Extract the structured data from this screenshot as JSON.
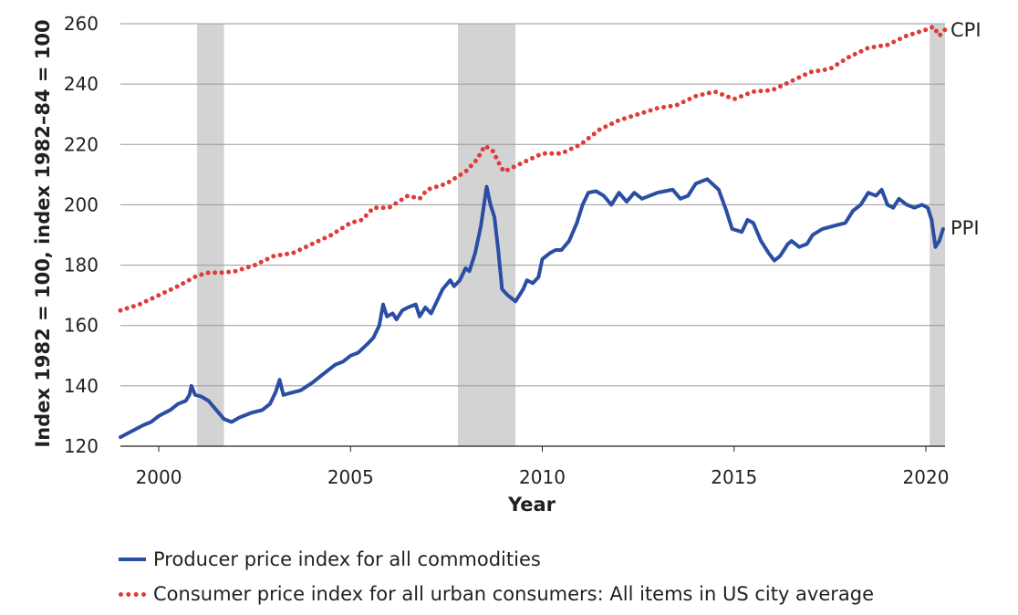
{
  "chart_data": {
    "type": "line",
    "title": "",
    "xlabel": "Year",
    "ylabel": "Index 1982 = 100, index 1982–84 = 100",
    "xlim": [
      1999.0,
      2020.5
    ],
    "ylim": [
      120,
      260
    ],
    "xticks": [
      "2000",
      "2005",
      "2010",
      "2015",
      "2020"
    ],
    "yticks": [
      "120",
      "140",
      "160",
      "180",
      "200",
      "220",
      "240",
      "260"
    ],
    "grid": "horizontal",
    "recessions": [
      [
        2001.0,
        2001.7
      ],
      [
        2007.8,
        2009.3
      ],
      [
        2020.1,
        2020.5
      ]
    ],
    "series": [
      {
        "name": "Producer price index for all commodities",
        "end_label": "PPI",
        "style": "solid",
        "color": "#2a4ea3",
        "points": [
          [
            1999.0,
            123
          ],
          [
            1999.3,
            125
          ],
          [
            1999.6,
            127
          ],
          [
            1999.8,
            128
          ],
          [
            2000.0,
            130
          ],
          [
            2000.3,
            132
          ],
          [
            2000.5,
            134
          ],
          [
            2000.7,
            135
          ],
          [
            2000.8,
            137
          ],
          [
            2000.85,
            140
          ],
          [
            2000.95,
            137
          ],
          [
            2001.1,
            136.5
          ],
          [
            2001.3,
            135
          ],
          [
            2001.5,
            132
          ],
          [
            2001.7,
            129
          ],
          [
            2001.9,
            128
          ],
          [
            2002.1,
            129.5
          ],
          [
            2002.4,
            131
          ],
          [
            2002.7,
            132
          ],
          [
            2002.9,
            134
          ],
          [
            2003.05,
            138
          ],
          [
            2003.15,
            142
          ],
          [
            2003.25,
            137
          ],
          [
            2003.4,
            137.5
          ],
          [
            2003.7,
            138.5
          ],
          [
            2004.0,
            141
          ],
          [
            2004.3,
            144
          ],
          [
            2004.6,
            147
          ],
          [
            2004.8,
            148
          ],
          [
            2005.0,
            150
          ],
          [
            2005.2,
            151
          ],
          [
            2005.45,
            154
          ],
          [
            2005.6,
            156
          ],
          [
            2005.75,
            160
          ],
          [
            2005.85,
            167
          ],
          [
            2005.95,
            163
          ],
          [
            2006.1,
            164
          ],
          [
            2006.2,
            162
          ],
          [
            2006.35,
            165
          ],
          [
            2006.5,
            166
          ],
          [
            2006.7,
            167
          ],
          [
            2006.8,
            163
          ],
          [
            2006.95,
            166
          ],
          [
            2007.1,
            164
          ],
          [
            2007.25,
            168
          ],
          [
            2007.4,
            172
          ],
          [
            2007.6,
            175
          ],
          [
            2007.7,
            173
          ],
          [
            2007.85,
            175
          ],
          [
            2008.0,
            179
          ],
          [
            2008.1,
            178
          ],
          [
            2008.25,
            184
          ],
          [
            2008.4,
            193
          ],
          [
            2008.55,
            206
          ],
          [
            2008.65,
            200
          ],
          [
            2008.75,
            196
          ],
          [
            2008.85,
            185
          ],
          [
            2008.95,
            172
          ],
          [
            2009.1,
            170
          ],
          [
            2009.3,
            168
          ],
          [
            2009.5,
            172
          ],
          [
            2009.6,
            175
          ],
          [
            2009.75,
            174
          ],
          [
            2009.9,
            176
          ],
          [
            2010.0,
            182
          ],
          [
            2010.2,
            184
          ],
          [
            2010.35,
            185
          ],
          [
            2010.5,
            185
          ],
          [
            2010.7,
            188
          ],
          [
            2010.9,
            194
          ],
          [
            2011.05,
            200
          ],
          [
            2011.2,
            204
          ],
          [
            2011.4,
            204.5
          ],
          [
            2011.6,
            203
          ],
          [
            2011.8,
            200
          ],
          [
            2012.0,
            204
          ],
          [
            2012.2,
            201
          ],
          [
            2012.4,
            204
          ],
          [
            2012.6,
            202
          ],
          [
            2012.8,
            203
          ],
          [
            2013.0,
            204
          ],
          [
            2013.2,
            204.5
          ],
          [
            2013.4,
            205
          ],
          [
            2013.6,
            202
          ],
          [
            2013.8,
            203
          ],
          [
            2014.0,
            207
          ],
          [
            2014.3,
            208.5
          ],
          [
            2014.6,
            205
          ],
          [
            2014.8,
            198
          ],
          [
            2014.95,
            192
          ],
          [
            2015.2,
            191
          ],
          [
            2015.35,
            195
          ],
          [
            2015.5,
            194
          ],
          [
            2015.7,
            188
          ],
          [
            2015.9,
            184
          ],
          [
            2016.05,
            181.5
          ],
          [
            2016.2,
            183
          ],
          [
            2016.4,
            187
          ],
          [
            2016.5,
            188
          ],
          [
            2016.7,
            186
          ],
          [
            2016.9,
            187
          ],
          [
            2017.05,
            190
          ],
          [
            2017.3,
            192
          ],
          [
            2017.6,
            193
          ],
          [
            2017.9,
            194
          ],
          [
            2018.1,
            198
          ],
          [
            2018.3,
            200
          ],
          [
            2018.5,
            204
          ],
          [
            2018.7,
            203
          ],
          [
            2018.85,
            205
          ],
          [
            2019.0,
            200
          ],
          [
            2019.15,
            199
          ],
          [
            2019.3,
            202
          ],
          [
            2019.5,
            200
          ],
          [
            2019.7,
            199
          ],
          [
            2019.9,
            200
          ],
          [
            2020.05,
            199
          ],
          [
            2020.15,
            195
          ],
          [
            2020.25,
            186
          ],
          [
            2020.35,
            188
          ],
          [
            2020.45,
            192
          ]
        ]
      },
      {
        "name": "Consumer price index for all urban consumers: All items in US city average",
        "end_label": "CPI",
        "style": "dotted",
        "color": "#e03a3a",
        "points": [
          [
            1999.0,
            165
          ],
          [
            1999.5,
            167
          ],
          [
            2000.0,
            170
          ],
          [
            2000.5,
            173
          ],
          [
            2001.0,
            176.5
          ],
          [
            2001.3,
            177.5
          ],
          [
            2001.7,
            177.5
          ],
          [
            2002.0,
            178
          ],
          [
            2002.5,
            180
          ],
          [
            2003.0,
            183
          ],
          [
            2003.5,
            184
          ],
          [
            2004.0,
            187
          ],
          [
            2004.5,
            190
          ],
          [
            2005.0,
            194
          ],
          [
            2005.3,
            195
          ],
          [
            2005.6,
            199
          ],
          [
            2006.0,
            199
          ],
          [
            2006.5,
            203
          ],
          [
            2006.8,
            202
          ],
          [
            2007.0,
            205
          ],
          [
            2007.5,
            207
          ],
          [
            2008.0,
            211
          ],
          [
            2008.3,
            215
          ],
          [
            2008.5,
            219.5
          ],
          [
            2008.7,
            218
          ],
          [
            2008.9,
            213
          ],
          [
            2009.0,
            211
          ],
          [
            2009.5,
            214
          ],
          [
            2010.0,
            217
          ],
          [
            2010.5,
            217
          ],
          [
            2011.0,
            220
          ],
          [
            2011.5,
            225
          ],
          [
            2012.0,
            228
          ],
          [
            2012.5,
            230
          ],
          [
            2013.0,
            232
          ],
          [
            2013.5,
            233
          ],
          [
            2014.0,
            236
          ],
          [
            2014.5,
            237.5
          ],
          [
            2015.0,
            235
          ],
          [
            2015.5,
            237.5
          ],
          [
            2016.0,
            238
          ],
          [
            2016.5,
            241
          ],
          [
            2017.0,
            244
          ],
          [
            2017.5,
            245
          ],
          [
            2018.0,
            249
          ],
          [
            2018.5,
            252
          ],
          [
            2019.0,
            253
          ],
          [
            2019.5,
            256
          ],
          [
            2020.0,
            258
          ],
          [
            2020.2,
            259
          ],
          [
            2020.35,
            256
          ],
          [
            2020.5,
            258
          ]
        ]
      }
    ]
  },
  "legend": {
    "items": [
      "Producer price index for all commodities",
      "Consumer price index for all urban consumers: All items in US city average"
    ]
  }
}
